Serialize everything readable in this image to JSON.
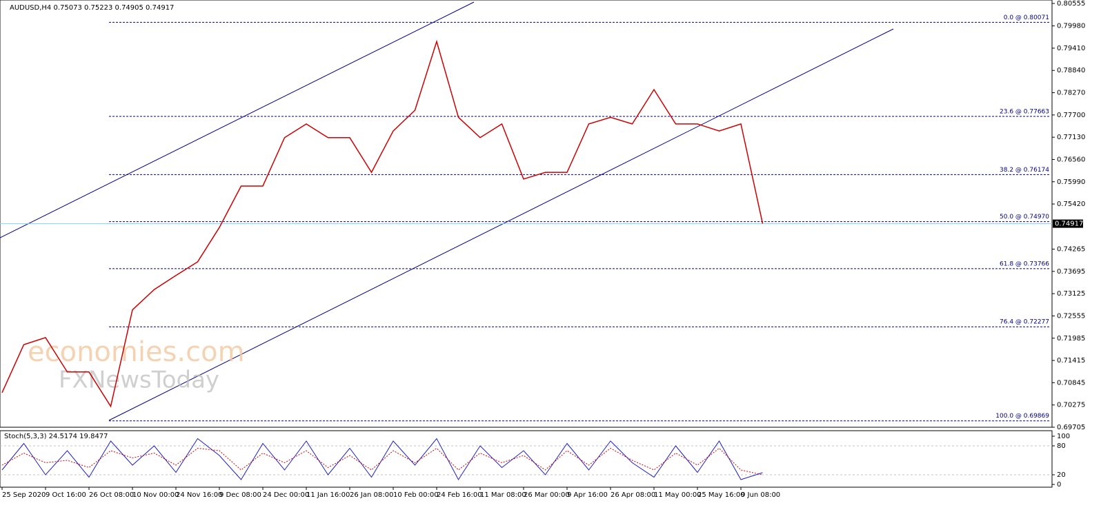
{
  "chart_data": [
    {
      "type": "line",
      "title": "AUDUSD,H4  0.75073 0.75223 0.74905 0.74917",
      "watermark": [
        "economies.com",
        "FXNewsToday"
      ],
      "categories": [
        "25 Sep 2020",
        null,
        "9 Oct 16:00",
        null,
        "26 Oct 08:00",
        null,
        "10 Nov 00:00",
        null,
        "24 Nov 16:00",
        null,
        "9 Dec 08:00",
        null,
        "24 Dec 00:00",
        null,
        "11 Jan 16:00",
        null,
        "26 Jan 08:00",
        null,
        "10 Feb 00:00",
        null,
        "24 Feb 16:00",
        null,
        "11 Mar 08:00",
        null,
        "26 Mar 00:00",
        null,
        "9 Apr 16:00",
        null,
        "26 Apr 08:00",
        null,
        "11 May 00:00",
        null,
        "25 May 16:00",
        null,
        "9 Jun 08:00",
        null
      ],
      "series": [
        {
          "name": "AUDUSD,H4",
          "color": "#cc0000",
          "values": [
            0.7059,
            0.7182,
            0.72,
            0.7112,
            0.7112,
            0.7024,
            0.7271,
            0.7323,
            0.7359,
            0.7394,
            0.7482,
            0.7588,
            0.7588,
            0.7712,
            0.7747,
            0.7712,
            0.7712,
            0.7623,
            0.7729,
            0.7782,
            0.7958,
            0.7764,
            0.7712,
            0.7747,
            0.7606,
            0.7623,
            0.7623,
            0.7747,
            0.7764,
            0.7747,
            0.7835,
            0.7747,
            0.7747,
            0.7729,
            0.7747,
            0.7492
          ]
        }
      ],
      "last_price": 0.74917,
      "fib_levels": [
        {
          "value": 0.80071,
          "label": "0.0 @ 0.80071"
        },
        {
          "value": 0.77663,
          "label": "23.6 @ 0.77663"
        },
        {
          "value": 0.76174,
          "label": "38.2 @ 0.76174"
        },
        {
          "value": 0.7497,
          "label": "50.0 @ 0.74970"
        },
        {
          "value": 0.73766,
          "label": "61.8 @ 0.73766"
        },
        {
          "value": 0.72277,
          "label": "76.4 @ 0.72277"
        },
        {
          "value": 0.69869,
          "label": "100.0 @ 0.69869"
        }
      ],
      "ylim": [
        0.69705,
        0.80555
      ],
      "yticks": [
        0.80555,
        {
          "value": 0.7998,
          "label": "0.79980"
        },
        {
          "value": 0.7941,
          "label": "0.79410"
        },
        {
          "value": 0.7884,
          "label": "0.78840"
        },
        {
          "value": 0.7827,
          "label": "0.78270"
        },
        {
          "value": 0.777,
          "label": "0.77700"
        },
        {
          "value": 0.7713,
          "label": "0.77130"
        },
        {
          "value": 0.7656,
          "label": "0.76560"
        },
        {
          "value": 0.7599,
          "label": "0.75990"
        },
        {
          "value": 0.7542,
          "label": "0.75420"
        },
        0.74265,
        0.73695,
        0.73125,
        0.72555,
        0.71985,
        0.71415,
        0.70845,
        0.70275,
        0.69705
      ]
    },
    {
      "type": "line",
      "title": "Stoch(5,3,3) 24.5174 19.8477",
      "series": [
        {
          "name": "Main",
          "color": "#2020c0",
          "values": [
            30,
            85,
            20,
            70,
            15,
            90,
            40,
            80,
            25,
            95,
            60,
            10,
            85,
            30,
            90,
            20,
            75,
            15,
            90,
            40,
            95,
            10,
            80,
            35,
            70,
            20,
            85,
            30,
            90,
            45,
            15,
            80,
            25,
            90,
            10,
            24.5174
          ]
        },
        {
          "name": "Signal",
          "color": "#cc0000",
          "values": [
            40,
            65,
            45,
            50,
            35,
            70,
            55,
            65,
            40,
            75,
            70,
            30,
            65,
            45,
            70,
            35,
            60,
            30,
            70,
            45,
            75,
            30,
            65,
            45,
            60,
            30,
            70,
            40,
            75,
            50,
            30,
            65,
            40,
            75,
            30,
            19.8477
          ]
        }
      ],
      "ylim": [
        0,
        100
      ],
      "yticks": [
        100,
        80,
        20,
        0
      ]
    }
  ]
}
